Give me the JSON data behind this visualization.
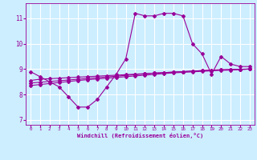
{
  "xlabel": "Windchill (Refroidissement éolien,°C)",
  "x_values": [
    0,
    1,
    2,
    3,
    4,
    5,
    6,
    7,
    8,
    9,
    10,
    11,
    12,
    13,
    14,
    15,
    16,
    17,
    18,
    19,
    20,
    21,
    22,
    23
  ],
  "line1": [
    8.9,
    8.7,
    8.5,
    8.3,
    7.9,
    7.5,
    7.5,
    7.8,
    8.3,
    8.8,
    9.4,
    11.2,
    11.1,
    11.1,
    11.2,
    11.2,
    11.1,
    10.0,
    9.6,
    8.8,
    9.5,
    9.2,
    9.1,
    9.1
  ],
  "line2": [
    8.55,
    8.6,
    8.62,
    8.64,
    8.66,
    8.68,
    8.7,
    8.72,
    8.74,
    8.76,
    8.78,
    8.8,
    8.82,
    8.84,
    8.86,
    8.88,
    8.9,
    8.92,
    8.94,
    8.96,
    8.97,
    8.98,
    8.99,
    9.0
  ],
  "line3": [
    8.45,
    8.48,
    8.51,
    8.54,
    8.57,
    8.6,
    8.63,
    8.66,
    8.69,
    8.72,
    8.75,
    8.78,
    8.81,
    8.84,
    8.86,
    8.88,
    8.9,
    8.92,
    8.94,
    8.96,
    8.97,
    8.98,
    8.99,
    9.0
  ],
  "line4": [
    8.35,
    8.39,
    8.43,
    8.47,
    8.51,
    8.55,
    8.58,
    8.61,
    8.64,
    8.67,
    8.7,
    8.73,
    8.76,
    8.79,
    8.82,
    8.85,
    8.87,
    8.89,
    8.91,
    8.93,
    8.95,
    8.96,
    8.98,
    9.0
  ],
  "color": "#990099",
  "bg_color": "#cceeff",
  "grid_color": "#ffffff",
  "ylim": [
    6.8,
    11.6
  ],
  "xlim": [
    -0.5,
    23.5
  ],
  "yticks": [
    7,
    8,
    9,
    10,
    11
  ],
  "xticks": [
    0,
    1,
    2,
    3,
    4,
    5,
    6,
    7,
    8,
    9,
    10,
    11,
    12,
    13,
    14,
    15,
    16,
    17,
    18,
    19,
    20,
    21,
    22,
    23
  ]
}
